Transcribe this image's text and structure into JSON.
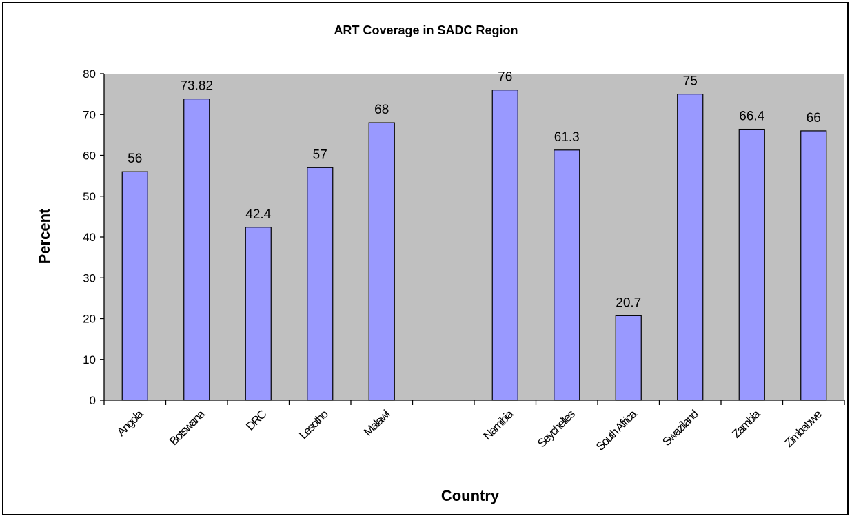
{
  "chart_data": {
    "type": "bar",
    "title": "ART Coverage in SADC Region",
    "xlabel": "Country",
    "ylabel": "Percent",
    "categories": [
      "Angola",
      "Botswana",
      "DRC",
      "Lesotho",
      "Malawi",
      "",
      "Namibia",
      "Seychelles",
      "South Africa",
      "Swaziland",
      "Zambia",
      "Zimbabwe"
    ],
    "values": [
      56,
      73.82,
      42.4,
      57,
      68,
      null,
      76,
      61.3,
      20.7,
      75,
      66.4,
      66
    ],
    "value_labels": [
      "56",
      "73.82",
      "42.4",
      "57",
      "68",
      "",
      "76",
      "61.3",
      "20.7",
      "75",
      "66.4",
      "66"
    ],
    "ylim": [
      0,
      80
    ],
    "yticks": [
      "0",
      "10",
      "20",
      "30",
      "40",
      "50",
      "60",
      "70",
      "80"
    ],
    "grid": false,
    "legend": "none",
    "colors": {
      "bar_fill": "#9999ff",
      "bar_stroke": "#000000",
      "plot_background": "#c0c0c0"
    }
  }
}
